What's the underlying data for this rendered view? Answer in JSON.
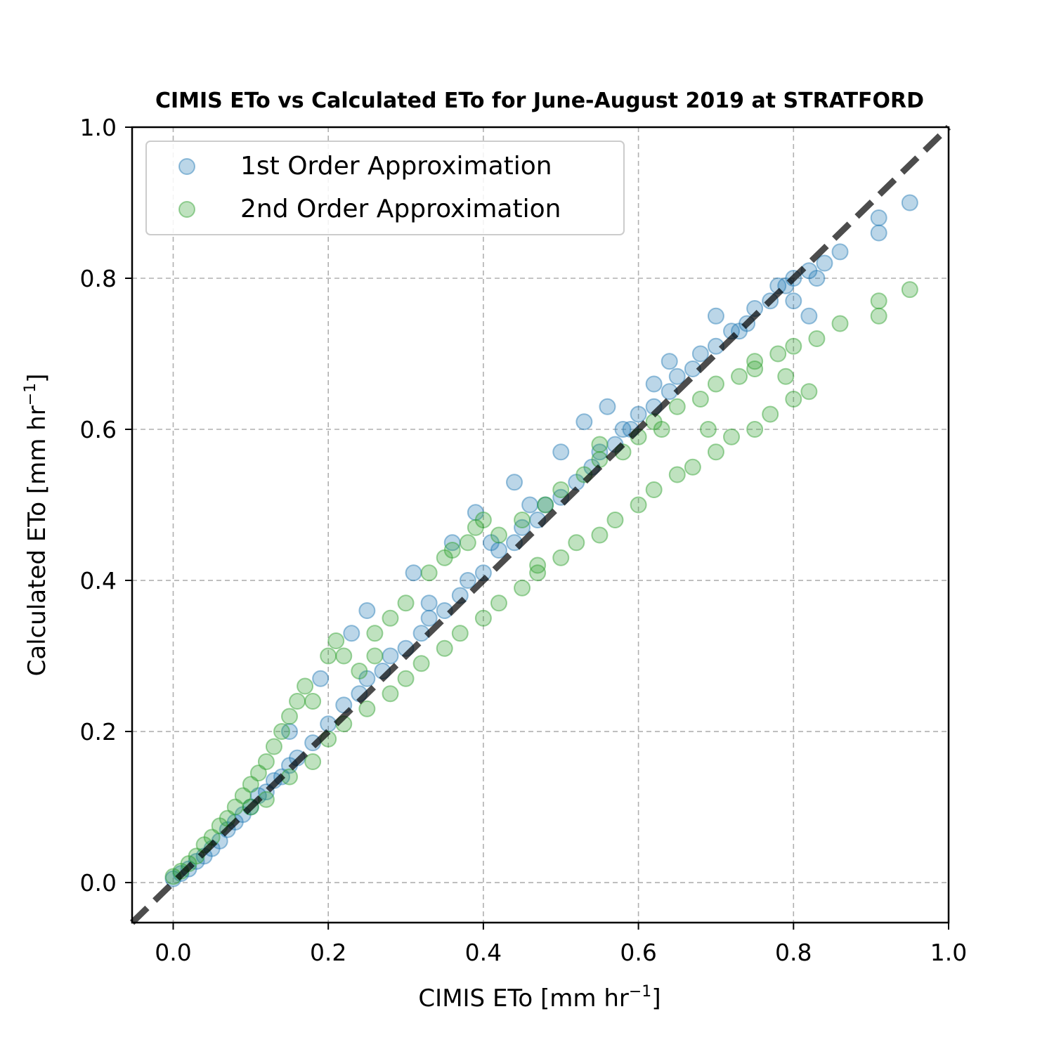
{
  "chart_data": {
    "type": "scatter",
    "title": "CIMIS ETo vs Calculated ETo for June-August 2019 at STRATFORD",
    "xlabel": {
      "main": "CIMIS ETo [mm hr",
      "sup": "−1",
      "end": "]"
    },
    "ylabel": {
      "main": "Calculated ETo [mm hr",
      "sup": "−1",
      "end": "]"
    },
    "xlim": [
      -0.053,
      1.0
    ],
    "ylim": [
      -0.053,
      1.0
    ],
    "xticks": [
      0.0,
      0.2,
      0.4,
      0.6,
      0.8,
      1.0
    ],
    "yticks": [
      0.0,
      0.2,
      0.4,
      0.6,
      0.8,
      1.0
    ],
    "xtick_labels": [
      "0.0",
      "0.2",
      "0.4",
      "0.6",
      "0.8",
      "1.0"
    ],
    "ytick_labels": [
      "0.0",
      "0.2",
      "0.4",
      "0.6",
      "0.8",
      "1.0"
    ],
    "grid": true,
    "legend_position": "top-left",
    "reference_line": {
      "style": "dashed",
      "color": "#000000",
      "slope": 1,
      "intercept": 0
    },
    "series": [
      {
        "name": "1st Order Approximation",
        "color": "#1f77b4",
        "points": [
          [
            0.0,
            0.005
          ],
          [
            0.01,
            0.012
          ],
          [
            0.02,
            0.018
          ],
          [
            0.03,
            0.028
          ],
          [
            0.04,
            0.035
          ],
          [
            0.05,
            0.045
          ],
          [
            0.06,
            0.055
          ],
          [
            0.07,
            0.07
          ],
          [
            0.08,
            0.08
          ],
          [
            0.09,
            0.09
          ],
          [
            0.1,
            0.1
          ],
          [
            0.11,
            0.115
          ],
          [
            0.12,
            0.12
          ],
          [
            0.13,
            0.135
          ],
          [
            0.14,
            0.14
          ],
          [
            0.15,
            0.155
          ],
          [
            0.16,
            0.165
          ],
          [
            0.18,
            0.185
          ],
          [
            0.2,
            0.21
          ],
          [
            0.22,
            0.235
          ],
          [
            0.24,
            0.25
          ],
          [
            0.25,
            0.27
          ],
          [
            0.27,
            0.28
          ],
          [
            0.28,
            0.3
          ],
          [
            0.3,
            0.31
          ],
          [
            0.32,
            0.33
          ],
          [
            0.33,
            0.35
          ],
          [
            0.35,
            0.36
          ],
          [
            0.37,
            0.38
          ],
          [
            0.38,
            0.4
          ],
          [
            0.4,
            0.41
          ],
          [
            0.42,
            0.44
          ],
          [
            0.44,
            0.45
          ],
          [
            0.45,
            0.47
          ],
          [
            0.47,
            0.48
          ],
          [
            0.48,
            0.5
          ],
          [
            0.5,
            0.51
          ],
          [
            0.52,
            0.53
          ],
          [
            0.54,
            0.55
          ],
          [
            0.55,
            0.57
          ],
          [
            0.57,
            0.58
          ],
          [
            0.58,
            0.6
          ],
          [
            0.6,
            0.62
          ],
          [
            0.62,
            0.63
          ],
          [
            0.64,
            0.65
          ],
          [
            0.65,
            0.67
          ],
          [
            0.67,
            0.68
          ],
          [
            0.68,
            0.7
          ],
          [
            0.7,
            0.71
          ],
          [
            0.72,
            0.73
          ],
          [
            0.74,
            0.74
          ],
          [
            0.75,
            0.76
          ],
          [
            0.77,
            0.77
          ],
          [
            0.78,
            0.79
          ],
          [
            0.8,
            0.8
          ],
          [
            0.82,
            0.81
          ],
          [
            0.83,
            0.8
          ],
          [
            0.84,
            0.82
          ],
          [
            0.86,
            0.835
          ],
          [
            0.91,
            0.86
          ],
          [
            0.91,
            0.88
          ],
          [
            0.95,
            0.9
          ],
          [
            0.25,
            0.36
          ],
          [
            0.31,
            0.41
          ],
          [
            0.36,
            0.45
          ],
          [
            0.39,
            0.49
          ],
          [
            0.44,
            0.53
          ],
          [
            0.5,
            0.57
          ],
          [
            0.53,
            0.61
          ],
          [
            0.56,
            0.63
          ],
          [
            0.62,
            0.66
          ],
          [
            0.64,
            0.69
          ],
          [
            0.7,
            0.75
          ],
          [
            0.79,
            0.79
          ],
          [
            0.82,
            0.75
          ],
          [
            0.23,
            0.33
          ],
          [
            0.19,
            0.27
          ],
          [
            0.15,
            0.2
          ],
          [
            0.33,
            0.37
          ],
          [
            0.41,
            0.45
          ],
          [
            0.46,
            0.5
          ],
          [
            0.59,
            0.6
          ],
          [
            0.73,
            0.73
          ],
          [
            0.8,
            0.77
          ]
        ]
      },
      {
        "name": "2nd Order Approximation",
        "color": "#2ca02c",
        "points": [
          [
            0.0,
            0.008
          ],
          [
            0.01,
            0.015
          ],
          [
            0.02,
            0.025
          ],
          [
            0.03,
            0.035
          ],
          [
            0.04,
            0.05
          ],
          [
            0.05,
            0.06
          ],
          [
            0.06,
            0.075
          ],
          [
            0.07,
            0.085
          ],
          [
            0.08,
            0.1
          ],
          [
            0.09,
            0.115
          ],
          [
            0.1,
            0.13
          ],
          [
            0.11,
            0.145
          ],
          [
            0.12,
            0.16
          ],
          [
            0.13,
            0.18
          ],
          [
            0.14,
            0.2
          ],
          [
            0.15,
            0.22
          ],
          [
            0.16,
            0.24
          ],
          [
            0.17,
            0.26
          ],
          [
            0.18,
            0.24
          ],
          [
            0.2,
            0.3
          ],
          [
            0.21,
            0.32
          ],
          [
            0.22,
            0.3
          ],
          [
            0.24,
            0.28
          ],
          [
            0.26,
            0.33
          ],
          [
            0.28,
            0.35
          ],
          [
            0.3,
            0.37
          ],
          [
            0.33,
            0.41
          ],
          [
            0.35,
            0.43
          ],
          [
            0.38,
            0.45
          ],
          [
            0.4,
            0.48
          ],
          [
            0.1,
            0.1
          ],
          [
            0.12,
            0.11
          ],
          [
            0.15,
            0.14
          ],
          [
            0.18,
            0.16
          ],
          [
            0.2,
            0.19
          ],
          [
            0.22,
            0.21
          ],
          [
            0.25,
            0.23
          ],
          [
            0.28,
            0.25
          ],
          [
            0.3,
            0.27
          ],
          [
            0.32,
            0.29
          ],
          [
            0.35,
            0.31
          ],
          [
            0.37,
            0.33
          ],
          [
            0.4,
            0.35
          ],
          [
            0.42,
            0.37
          ],
          [
            0.45,
            0.39
          ],
          [
            0.47,
            0.41
          ],
          [
            0.5,
            0.43
          ],
          [
            0.52,
            0.45
          ],
          [
            0.55,
            0.46
          ],
          [
            0.57,
            0.48
          ],
          [
            0.6,
            0.5
          ],
          [
            0.62,
            0.52
          ],
          [
            0.65,
            0.54
          ],
          [
            0.67,
            0.55
          ],
          [
            0.7,
            0.57
          ],
          [
            0.72,
            0.59
          ],
          [
            0.75,
            0.6
          ],
          [
            0.77,
            0.62
          ],
          [
            0.8,
            0.64
          ],
          [
            0.82,
            0.65
          ],
          [
            0.42,
            0.46
          ],
          [
            0.45,
            0.48
          ],
          [
            0.48,
            0.5
          ],
          [
            0.5,
            0.52
          ],
          [
            0.53,
            0.54
          ],
          [
            0.55,
            0.56
          ],
          [
            0.58,
            0.57
          ],
          [
            0.6,
            0.59
          ],
          [
            0.62,
            0.61
          ],
          [
            0.65,
            0.63
          ],
          [
            0.68,
            0.64
          ],
          [
            0.7,
            0.66
          ],
          [
            0.73,
            0.67
          ],
          [
            0.75,
            0.69
          ],
          [
            0.78,
            0.7
          ],
          [
            0.8,
            0.71
          ],
          [
            0.83,
            0.72
          ],
          [
            0.86,
            0.74
          ],
          [
            0.91,
            0.75
          ],
          [
            0.91,
            0.77
          ],
          [
            0.95,
            0.785
          ],
          [
            0.39,
            0.47
          ],
          [
            0.36,
            0.44
          ],
          [
            0.55,
            0.58
          ],
          [
            0.63,
            0.6
          ],
          [
            0.75,
            0.68
          ],
          [
            0.79,
            0.67
          ],
          [
            0.69,
            0.6
          ],
          [
            0.47,
            0.42
          ],
          [
            0.26,
            0.3
          ]
        ]
      }
    ]
  }
}
